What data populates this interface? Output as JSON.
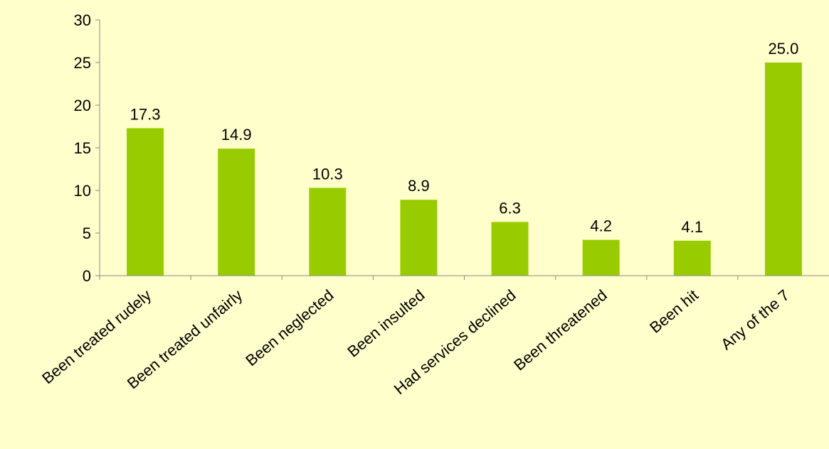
{
  "colors": {
    "background": "#FFFFCC",
    "bar": "#99CC00",
    "axis": "#888888",
    "text": "#000000"
  },
  "chart_data": {
    "type": "bar",
    "categories": [
      "Been treated rudely",
      "Been treated unfairly",
      "Been neglected",
      "Been insulted",
      "Had services declined",
      "Been threatened",
      "Been hit",
      "Any of the 7"
    ],
    "values": [
      17.3,
      14.9,
      10.3,
      8.9,
      6.3,
      4.2,
      4.1,
      25.0
    ],
    "data_labels": [
      "17.3",
      "14.9",
      "10.3",
      "8.9",
      "6.3",
      "4.2",
      "4.1",
      "25.0"
    ],
    "title": "",
    "xlabel": "",
    "ylabel": "",
    "ylim": [
      0,
      30
    ],
    "yticks": [
      "0",
      "5",
      "10",
      "15",
      "20",
      "25",
      "30"
    ],
    "grid": false,
    "legend": "none"
  }
}
